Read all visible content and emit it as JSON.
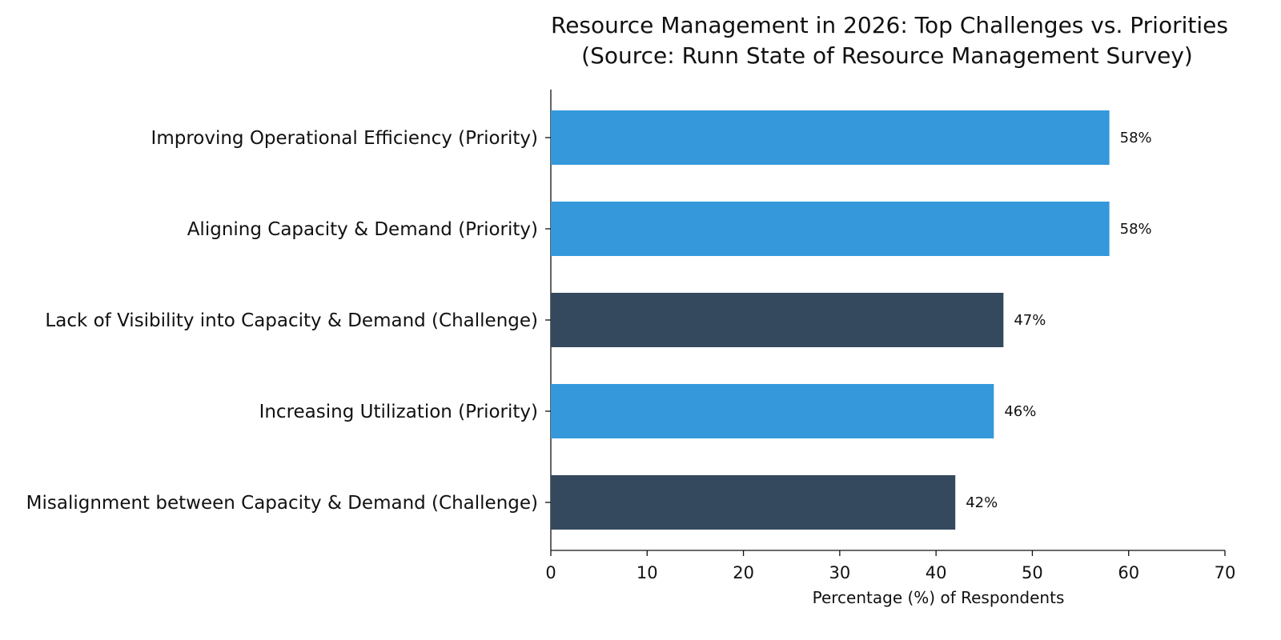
{
  "chart_data": {
    "type": "bar",
    "orientation": "horizontal",
    "title": [
      "Resource Management in 2026: Top Challenges vs. Priorities",
      "(Source: Runn State of Resource Management Survey)"
    ],
    "xlabel": "Percentage (%) of Respondents",
    "ylabel": "",
    "xlim": [
      0,
      70
    ],
    "xticks": [
      0,
      10,
      20,
      30,
      40,
      50,
      60,
      70
    ],
    "grid": false,
    "legend": null,
    "colors": {
      "Priority": "#3498db",
      "Challenge": "#34495e"
    },
    "bars": [
      {
        "label": "Improving Operational Efficiency (Priority)",
        "value": 58,
        "value_label": "58%",
        "kind": "Priority"
      },
      {
        "label": "Aligning Capacity & Demand (Priority)",
        "value": 58,
        "value_label": "58%",
        "kind": "Priority"
      },
      {
        "label": "Lack of Visibility into Capacity & Demand (Challenge)",
        "value": 47,
        "value_label": "47%",
        "kind": "Challenge"
      },
      {
        "label": "Increasing Utilization (Priority)",
        "value": 46,
        "value_label": "46%",
        "kind": "Priority"
      },
      {
        "label": "Misalignment between Capacity & Demand (Challenge)",
        "value": 42,
        "value_label": "42%",
        "kind": "Challenge"
      }
    ]
  }
}
